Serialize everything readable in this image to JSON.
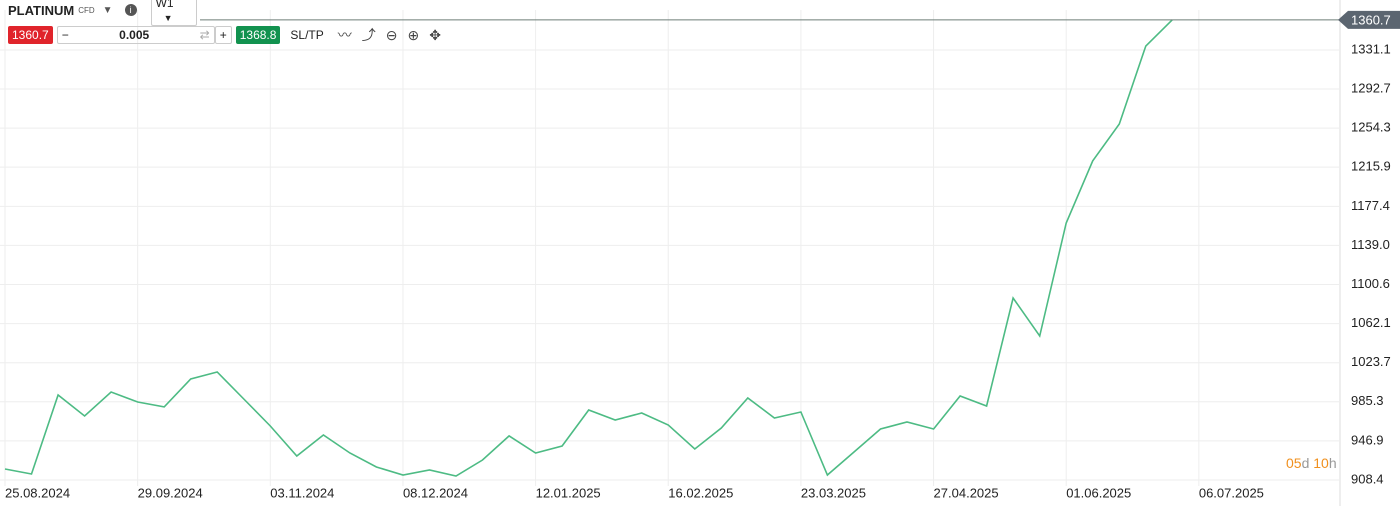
{
  "toolbar": {
    "symbol": "PLATINUM",
    "symbol_type": "CFD",
    "timeframe": "W1",
    "sell": "1360.7",
    "volume": "0.005",
    "buy": "1368.8",
    "sltp": "SL/TP"
  },
  "countdown": {
    "days": "05",
    "day_unit": "d",
    "hours": "10",
    "hour_unit": "h"
  },
  "chart_data": {
    "type": "line",
    "color": "#4dbb84",
    "grid": true,
    "categories": [
      "25.08.2024",
      null,
      null,
      null,
      null,
      "29.09.2024",
      null,
      null,
      null,
      null,
      "03.11.2024",
      null,
      null,
      null,
      null,
      "08.12.2024",
      null,
      null,
      null,
      null,
      "12.01.2025",
      null,
      null,
      null,
      null,
      "16.02.2025",
      null,
      null,
      null,
      null,
      "23.03.2025",
      null,
      null,
      null,
      null,
      "27.04.2025",
      null,
      null,
      null,
      null,
      "01.06.2025",
      null,
      null,
      null,
      null,
      "06.07.2025",
      null,
      null,
      null,
      null,
      null
    ],
    "values": [
      919.2,
      914.3,
      991.9,
      971.3,
      994.9,
      985.1,
      980.2,
      1007.7,
      1014.6,
      988.0,
      961.5,
      932.0,
      952.6,
      934.9,
      921.2,
      913.3,
      918.2,
      912.3,
      928.1,
      951.7,
      934.9,
      941.8,
      977.2,
      967.4,
      974.3,
      962.5,
      938.9,
      959.5,
      989.0,
      969.3,
      975.2,
      913.3,
      935.9,
      958.5,
      965.4,
      958.5,
      991.0,
      981.1,
      1087.3,
      1049.9,
      1161.0,
      1222.0,
      1258.3,
      1335.0,
      1360.7,
      null,
      null,
      null,
      null,
      null,
      null
    ],
    "current_price": 1360.7,
    "ylim": [
      902.5,
      1380.2
    ],
    "yticks": [
      908.4,
      946.9,
      985.3,
      1023.7,
      1062.1,
      1100.6,
      {
        "value": 1139,
        "label": "1139.0"
      },
      1177.4,
      1215.9,
      1254.3,
      1292.7,
      1331.1
    ]
  }
}
